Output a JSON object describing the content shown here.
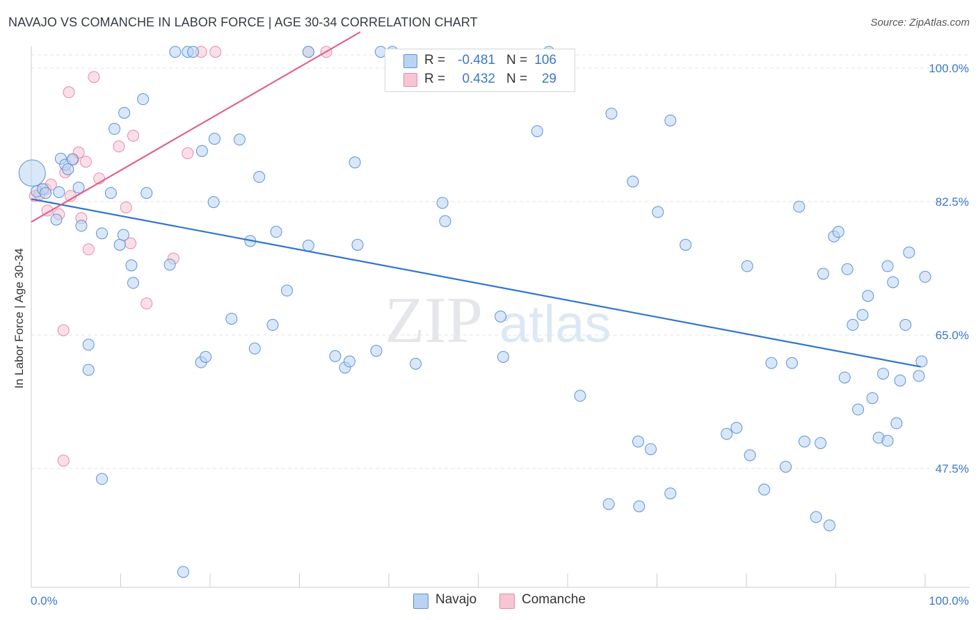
{
  "header": {
    "title": "NAVAJO VS COMANCHE IN LABOR FORCE | AGE 30-34 CORRELATION CHART",
    "source": "Source: ZipAtlas.com"
  },
  "legend_top": {
    "rows": [
      {
        "r_label": "R =",
        "r_value": "-0.481",
        "n_label": "N =",
        "n_value": "106"
      },
      {
        "r_label": "R =",
        "r_value": "0.432",
        "n_label": "N =",
        "n_value": "29"
      }
    ]
  },
  "legend_bottom": {
    "navajo": "Navajo",
    "comanche": "Comanche"
  },
  "watermark": {
    "zip": "ZIP",
    "atlas": "atlas"
  },
  "colors": {
    "navajo_fill": "#b9d3f3",
    "navajo_stroke": "#5b92d8",
    "navajo_line": "#2f74d0",
    "comanche_fill": "#f8c5d4",
    "comanche_stroke": "#e58aa7",
    "comanche_line": "#e0628b",
    "tick_text": "#3a78c9",
    "grid": "#dfe3e8"
  },
  "chart_data": {
    "type": "scatter",
    "title": "NAVAJO VS COMANCHE IN LABOR FORCE | AGE 30-34 CORRELATION CHART",
    "xlabel": "",
    "ylabel": "In Labor Force | Age 30-34",
    "xlim": [
      0,
      100
    ],
    "ylim": [
      30,
      103
    ],
    "x_tick_labels": [
      "0.0%",
      "100.0%"
    ],
    "y_ticks": [
      47.5,
      65.0,
      82.5,
      100.0
    ],
    "y_tick_labels": [
      "47.5%",
      "65.0%",
      "82.5%",
      "100.0%"
    ],
    "grid": true,
    "legend_position": "top-center",
    "series": [
      {
        "name": "Navajo",
        "R": -0.481,
        "N": 106,
        "trend": {
          "x": [
            0,
            99.5
          ],
          "y": [
            81.1,
            59.1
          ]
        },
        "points": [
          [
            0.1,
            84.5
          ],
          [
            0.6,
            82.1
          ],
          [
            1.3,
            82.4
          ],
          [
            1.6,
            81.9
          ],
          [
            3.1,
            82.0
          ],
          [
            2.8,
            78.4
          ],
          [
            3.3,
            86.4
          ],
          [
            3.8,
            85.6
          ],
          [
            4.1,
            85.0
          ],
          [
            4.6,
            86.3
          ],
          [
            5.3,
            82.6
          ],
          [
            5.6,
            77.6
          ],
          [
            7.9,
            76.6
          ],
          [
            8.9,
            81.9
          ],
          [
            9.3,
            90.3
          ],
          [
            10.4,
            92.4
          ],
          [
            9.9,
            75.1
          ],
          [
            10.3,
            76.4
          ],
          [
            11.2,
            72.4
          ],
          [
            12.5,
            94.2
          ],
          [
            12.9,
            81.9
          ],
          [
            11.4,
            70.1
          ],
          [
            15.5,
            72.5
          ],
          [
            16.1,
            100.4
          ],
          [
            17.5,
            100.4
          ],
          [
            18.1,
            100.4
          ],
          [
            19.1,
            87.4
          ],
          [
            20.4,
            80.7
          ],
          [
            20.5,
            89.0
          ],
          [
            22.4,
            65.4
          ],
          [
            23.3,
            88.9
          ],
          [
            24.5,
            75.6
          ],
          [
            25.5,
            84.0
          ],
          [
            25.0,
            61.5
          ],
          [
            27.0,
            64.6
          ],
          [
            27.4,
            76.8
          ],
          [
            19.0,
            59.7
          ],
          [
            19.5,
            60.4
          ],
          [
            28.6,
            69.1
          ],
          [
            31.0,
            100.4
          ],
          [
            31.0,
            75.0
          ],
          [
            34.0,
            60.5
          ],
          [
            35.1,
            59.0
          ],
          [
            35.6,
            59.8
          ],
          [
            36.2,
            85.9
          ],
          [
            36.5,
            75.1
          ],
          [
            38.6,
            61.2
          ],
          [
            39.1,
            100.4
          ],
          [
            40.4,
            100.4
          ],
          [
            43.0,
            59.5
          ],
          [
            46.0,
            80.6
          ],
          [
            46.3,
            78.2
          ],
          [
            52.5,
            65.7
          ],
          [
            52.8,
            60.4
          ],
          [
            56.6,
            90.0
          ],
          [
            57.9,
            100.4
          ],
          [
            61.4,
            55.3
          ],
          [
            64.6,
            41.1
          ],
          [
            64.9,
            92.3
          ],
          [
            67.3,
            83.4
          ],
          [
            67.9,
            49.3
          ],
          [
            68.0,
            40.8
          ],
          [
            69.3,
            48.3
          ],
          [
            70.1,
            79.4
          ],
          [
            71.5,
            91.4
          ],
          [
            71.5,
            42.5
          ],
          [
            73.2,
            75.1
          ],
          [
            77.8,
            50.3
          ],
          [
            78.9,
            51.1
          ],
          [
            80.4,
            47.5
          ],
          [
            80.1,
            72.3
          ],
          [
            82.0,
            43.0
          ],
          [
            84.4,
            46.0
          ],
          [
            82.8,
            59.6
          ],
          [
            85.1,
            59.6
          ],
          [
            85.9,
            80.1
          ],
          [
            86.5,
            49.3
          ],
          [
            87.8,
            39.4
          ],
          [
            88.3,
            49.1
          ],
          [
            88.6,
            71.3
          ],
          [
            89.3,
            38.3
          ],
          [
            89.8,
            76.2
          ],
          [
            90.3,
            76.8
          ],
          [
            91.0,
            57.7
          ],
          [
            91.3,
            71.9
          ],
          [
            91.9,
            64.6
          ],
          [
            92.5,
            53.5
          ],
          [
            93.0,
            65.9
          ],
          [
            93.6,
            68.4
          ],
          [
            94.1,
            55.0
          ],
          [
            94.8,
            49.8
          ],
          [
            95.3,
            58.2
          ],
          [
            95.8,
            49.4
          ],
          [
            95.8,
            72.3
          ],
          [
            96.4,
            70.2
          ],
          [
            96.8,
            51.7
          ],
          [
            97.2,
            57.3
          ],
          [
            97.8,
            64.6
          ],
          [
            98.2,
            74.1
          ],
          [
            99.3,
            57.9
          ],
          [
            99.6,
            59.8
          ],
          [
            100.0,
            70.9
          ],
          [
            7.9,
            44.4
          ],
          [
            6.4,
            62.0
          ],
          [
            6.4,
            58.7
          ],
          [
            17.0,
            32.2
          ]
        ]
      },
      {
        "name": "Comanche",
        "R": 0.432,
        "N": 29,
        "trend": {
          "x": [
            0,
            36.8
          ],
          "y": [
            78.1,
            103.0
          ]
        },
        "points": [
          [
            0.4,
            81.5
          ],
          [
            0.9,
            81.7
          ],
          [
            1.6,
            82.4
          ],
          [
            1.8,
            79.6
          ],
          [
            2.2,
            83.0
          ],
          [
            3.1,
            79.1
          ],
          [
            3.6,
            63.9
          ],
          [
            3.6,
            46.8
          ],
          [
            3.8,
            84.6
          ],
          [
            4.2,
            95.1
          ],
          [
            4.4,
            81.5
          ],
          [
            4.7,
            86.3
          ],
          [
            5.3,
            87.2
          ],
          [
            5.6,
            78.6
          ],
          [
            6.1,
            86.0
          ],
          [
            6.4,
            74.5
          ],
          [
            7.0,
            97.1
          ],
          [
            7.6,
            83.8
          ],
          [
            9.8,
            88.0
          ],
          [
            10.6,
            80.0
          ],
          [
            11.1,
            75.3
          ],
          [
            11.4,
            89.4
          ],
          [
            12.9,
            67.4
          ],
          [
            15.9,
            73.3
          ],
          [
            17.5,
            87.1
          ],
          [
            19.0,
            100.4
          ],
          [
            20.6,
            100.4
          ],
          [
            31.0,
            100.4
          ],
          [
            33.0,
            100.4
          ]
        ]
      }
    ]
  }
}
